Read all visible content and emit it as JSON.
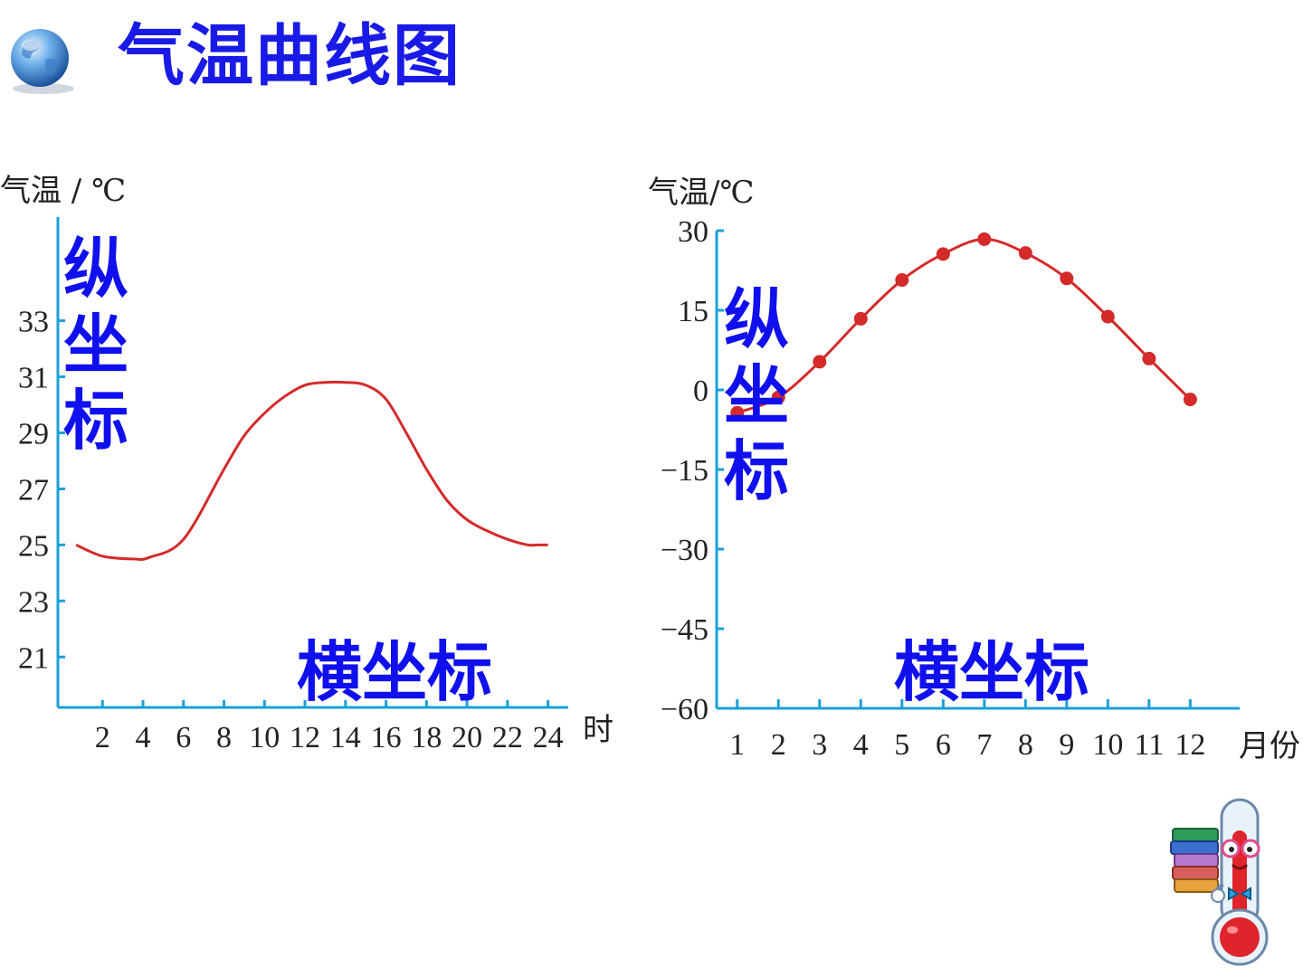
{
  "slide": {
    "title": "气温曲线图"
  },
  "icons": {
    "globe": "globe-icon",
    "mascot": "thermometer-mascot-holding-books"
  },
  "colors": {
    "title": "#1a1ae6",
    "axis": "#1aa0d8",
    "curve": "#d42a2a",
    "callout": "#1010ee"
  },
  "annotations": {
    "left_vertical": [
      "纵",
      "坐",
      "标"
    ],
    "left_horizontal": "横坐标",
    "right_vertical": [
      "纵",
      "坐",
      "标"
    ],
    "right_horizontal": "横坐标"
  },
  "chart_data": [
    {
      "type": "line",
      "ylabel": "气温 / ℃",
      "xlabel": "时",
      "yticks": [
        21,
        23,
        25,
        27,
        29,
        31,
        33
      ],
      "xticks": [
        2,
        4,
        6,
        8,
        10,
        12,
        14,
        16,
        18,
        20,
        22,
        24
      ],
      "ylim": [
        19.2,
        36.7
      ],
      "xlim": [
        -0.2,
        25
      ],
      "markers": false,
      "grid": false,
      "series": [
        {
          "x": [
            0.7,
            2,
            3.5,
            4.3,
            6,
            8,
            9,
            10,
            11,
            12,
            13,
            14,
            15,
            16,
            17,
            18,
            19,
            20,
            21,
            22,
            23,
            23.5,
            24
          ],
          "y": [
            25.0,
            24.6,
            24.5,
            24.55,
            25.2,
            27.7,
            28.9,
            29.7,
            30.3,
            30.7,
            30.8,
            30.8,
            30.7,
            30.2,
            29.0,
            27.7,
            26.6,
            25.9,
            25.5,
            25.2,
            25.0,
            25.0,
            25.0
          ]
        }
      ]
    },
    {
      "type": "line",
      "ylabel": "气温/℃",
      "xlabel": "月份",
      "yticks": [
        -60,
        -45,
        -30,
        -15,
        0,
        15,
        30
      ],
      "xticks": [
        1,
        2,
        3,
        4,
        5,
        6,
        7,
        8,
        9,
        10,
        11,
        12
      ],
      "ylim": [
        -60,
        30
      ],
      "xlim": [
        0.5,
        13.2
      ],
      "markers": true,
      "grid": false,
      "series": [
        {
          "x": [
            1,
            2,
            3,
            4,
            5,
            6,
            7,
            8,
            9,
            10,
            11,
            12
          ],
          "y": [
            -4.3,
            -1.4,
            5.3,
            13.4,
            20.7,
            25.6,
            28.4,
            25.8,
            21.0,
            13.8,
            5.9,
            -1.8
          ]
        }
      ]
    }
  ]
}
